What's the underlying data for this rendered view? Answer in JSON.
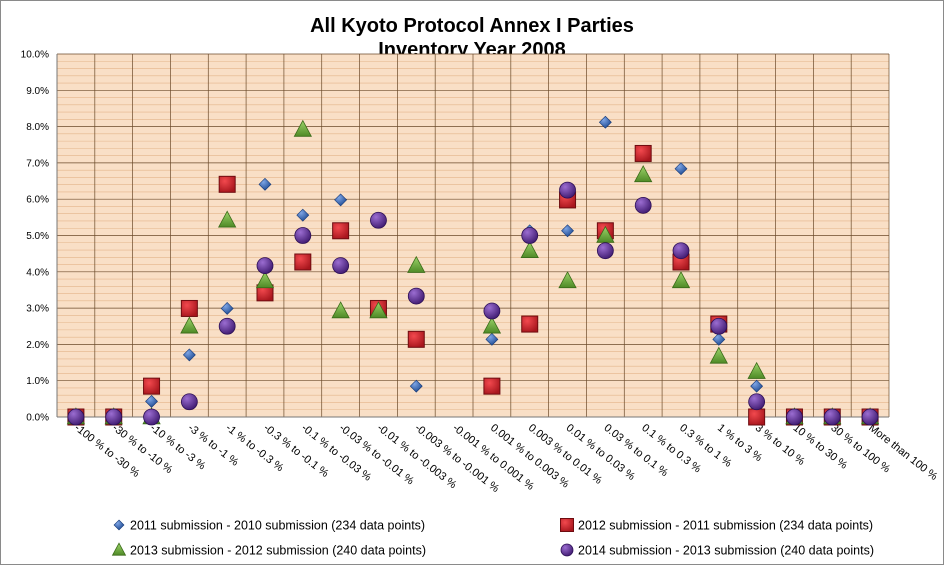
{
  "chart_data": {
    "type": "scatter",
    "title": [
      "All Kyoto Protocol Annex I Parties",
      "Inventory  Year 2008"
    ],
    "xlabel": "",
    "ylabel": "",
    "ylim": [
      0,
      10
    ],
    "y_ticks": [
      "0.0%",
      "1.0%",
      "2.0%",
      "3.0%",
      "4.0%",
      "5.0%",
      "6.0%",
      "7.0%",
      "8.0%",
      "9.0%",
      "10.0%"
    ],
    "grid": true,
    "legend_position": "bottom",
    "plot_background": "#f9dfc6",
    "grid_color": "#6b4a2a",
    "categories": [
      "-100 % to -30 %",
      "-30 % to -10 %",
      "-10 % to -3 %",
      "-3 % to -1 %",
      "-1 % to -0.3 %",
      "-0.3 % to -0.1 %",
      "-0.1 % to -0.03 %",
      "-0.03 % to -0.01 %",
      "-0.01 % to -0.003 %",
      "-0.003 % to -0.001 %",
      "-0.001 % to 0.001 %",
      "0.001 % to 0.003 %",
      "0.003 % to 0.01 %",
      "0.01 % to 0.03 %",
      "0.03 % to 0.1 %",
      "0.1 % to 0.3 %",
      "0.3 % to 1 %",
      "1 % to 3 %",
      "3 % to 10 %",
      "10 % to 30 %",
      "30 % to 100 %",
      "More than 100 %"
    ],
    "series": [
      {
        "name": "2011 submission - 2010 submission (234 data points)",
        "marker": "diamond",
        "color": "#2a5caa",
        "values": [
          0,
          0,
          0.43,
          1.71,
          2.99,
          6.41,
          5.56,
          5.98,
          null,
          0.85,
          null,
          2.14,
          5.13,
          5.13,
          8.12,
          null,
          6.84,
          2.14,
          0.85,
          0,
          0,
          0
        ]
      },
      {
        "name": "2012 submission - 2011 submission (234 data points)",
        "marker": "square",
        "color": "#c0262b",
        "values": [
          0,
          0,
          0.85,
          2.99,
          6.41,
          3.42,
          4.27,
          5.13,
          2.99,
          2.14,
          null,
          0.85,
          2.56,
          5.98,
          5.13,
          7.26,
          4.27,
          2.56,
          0,
          0,
          0,
          0
        ]
      },
      {
        "name": "2013 submission - 2012 submission (240 data points)",
        "marker": "triangle",
        "color": "#6aa83a",
        "values": [
          0,
          0,
          0,
          2.5,
          5.42,
          3.75,
          7.92,
          2.92,
          2.92,
          4.17,
          null,
          2.5,
          4.58,
          3.75,
          5.0,
          6.67,
          3.75,
          1.67,
          1.25,
          0,
          0,
          0
        ]
      },
      {
        "name": "2014 submission - 2013 submission (240 data points)",
        "marker": "circle",
        "color": "#5a2d8c",
        "values": [
          0,
          0,
          0,
          0.42,
          2.5,
          4.17,
          5.0,
          4.17,
          5.42,
          3.33,
          null,
          2.92,
          5.0,
          6.25,
          4.58,
          5.83,
          4.58,
          2.5,
          0.42,
          0,
          0,
          0
        ]
      }
    ]
  }
}
